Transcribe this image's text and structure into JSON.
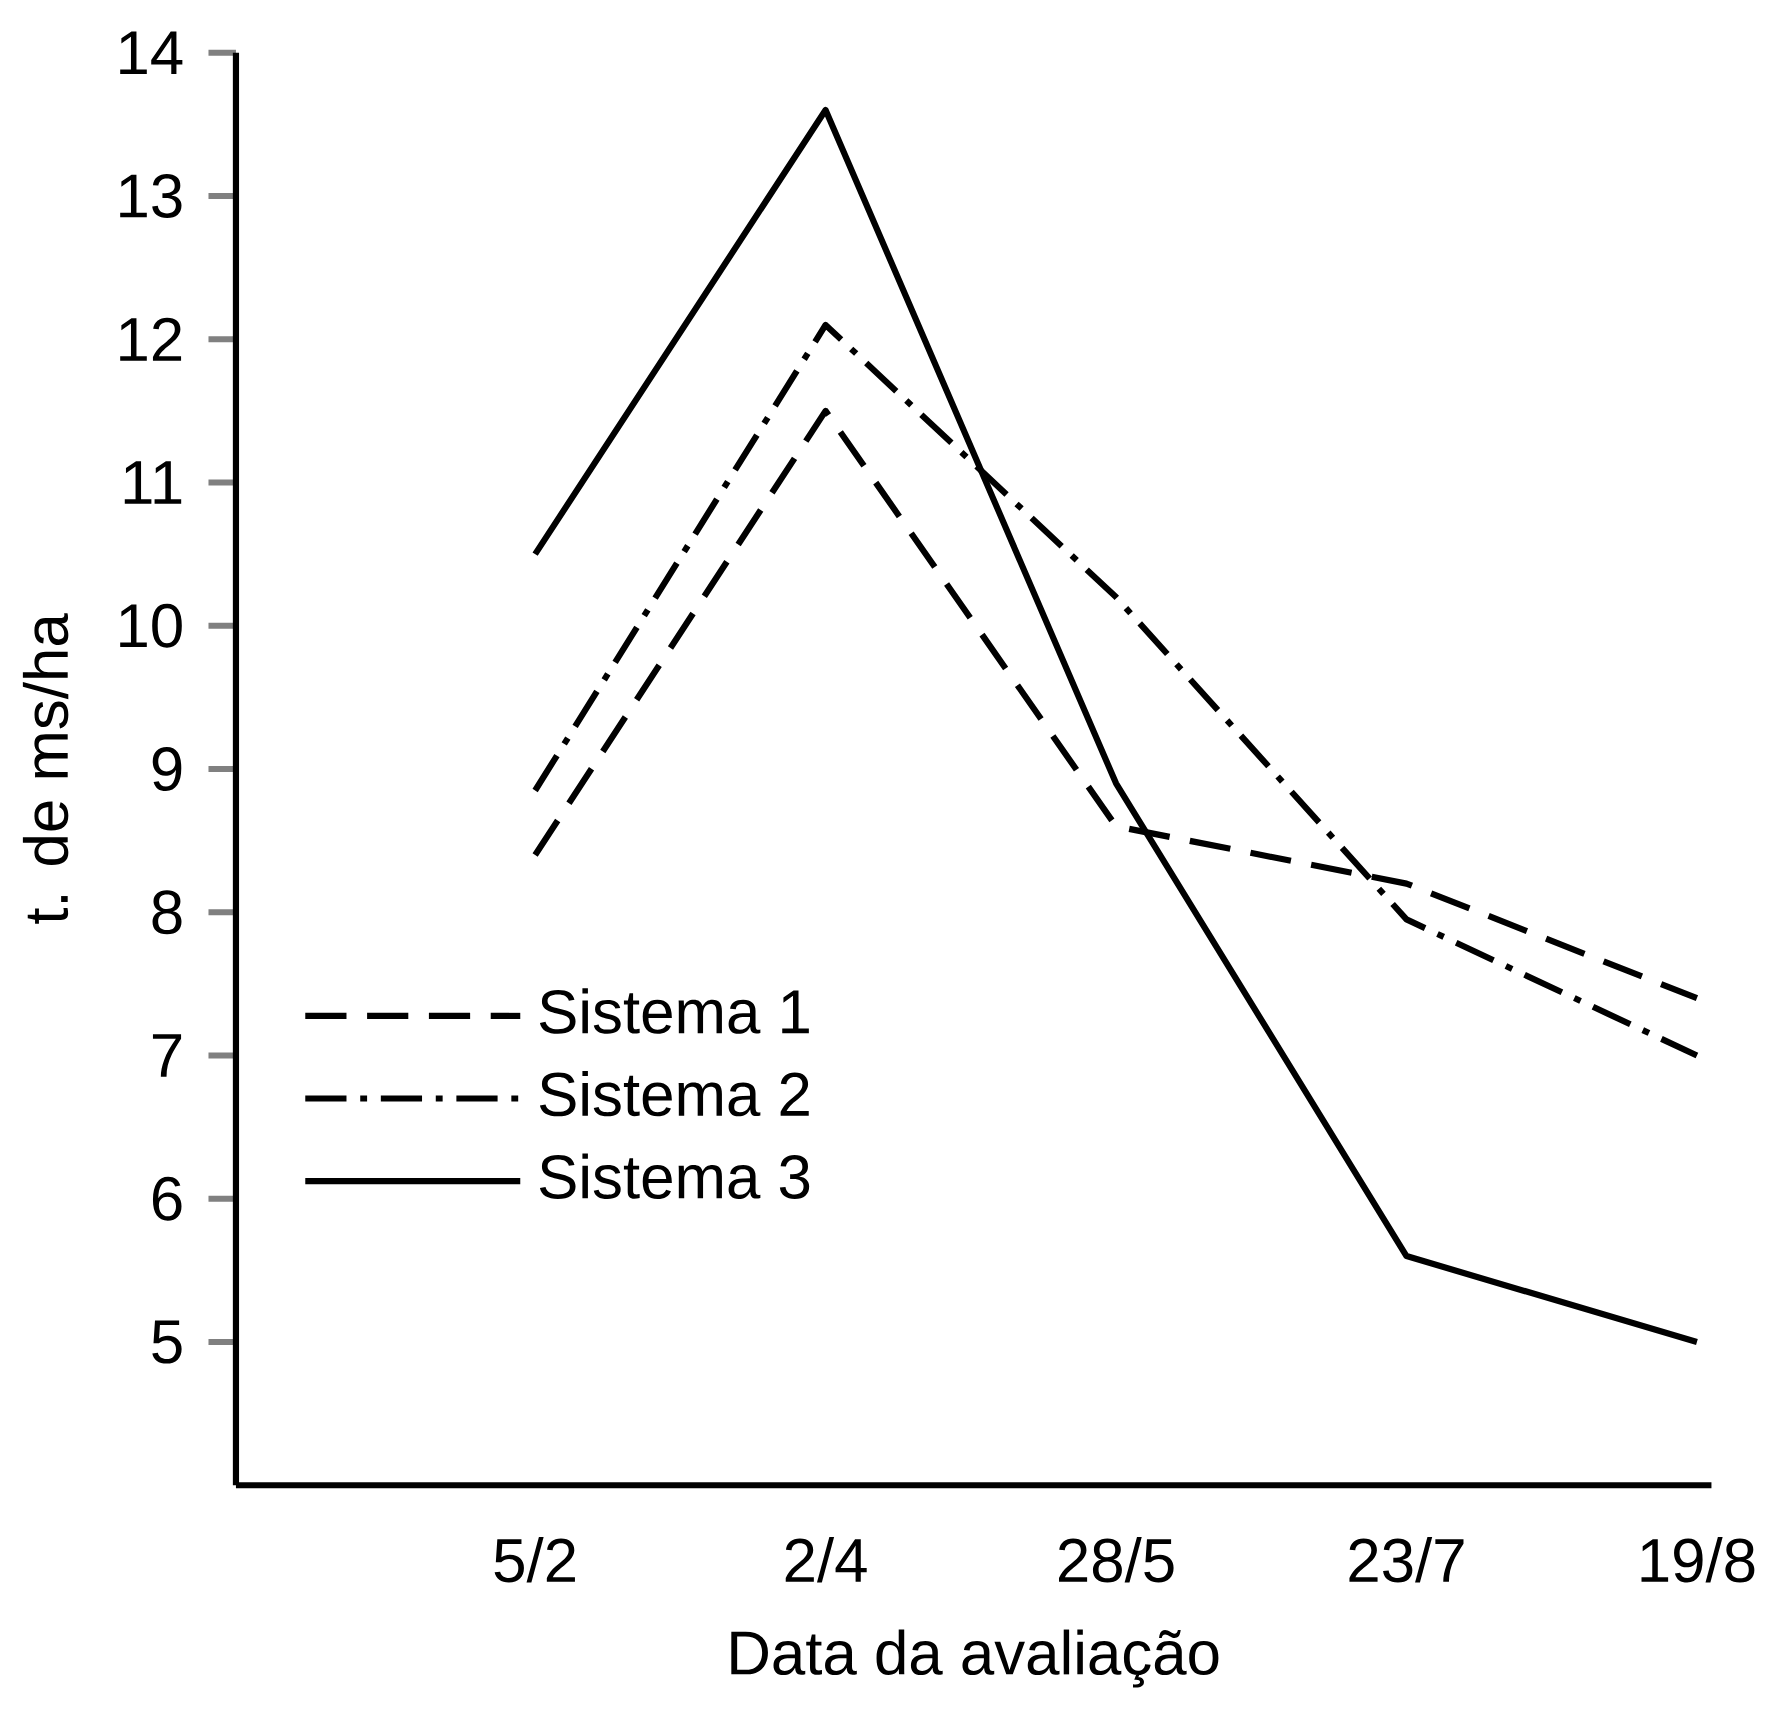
{
  "chart_data": {
    "type": "line",
    "xlabel": "Data da avaliação",
    "ylabel": "t. de ms/ha",
    "categories": [
      "5/2",
      "2/4",
      "28/5",
      "23/7",
      "19/8"
    ],
    "series": [
      {
        "name": "Sistema 1",
        "color": "#000000",
        "line_style": "dashed",
        "values": [
          8.4,
          11.5,
          8.6,
          8.2,
          7.4
        ]
      },
      {
        "name": "Sistema 2",
        "color": "#000000",
        "line_style": "dashdot",
        "values": [
          8.85,
          12.1,
          10.2,
          7.95,
          7.0
        ]
      },
      {
        "name": "Sistema 3",
        "color": "#000000",
        "line_style": "solid",
        "values": [
          10.5,
          13.6,
          8.9,
          5.6,
          5.0
        ]
      }
    ],
    "ylim": [
      4,
      14
    ],
    "yticks": [
      5,
      6,
      7,
      8,
      9,
      10,
      11,
      12,
      13,
      14
    ],
    "grid": false,
    "legend": "left",
    "marker": "none"
  }
}
